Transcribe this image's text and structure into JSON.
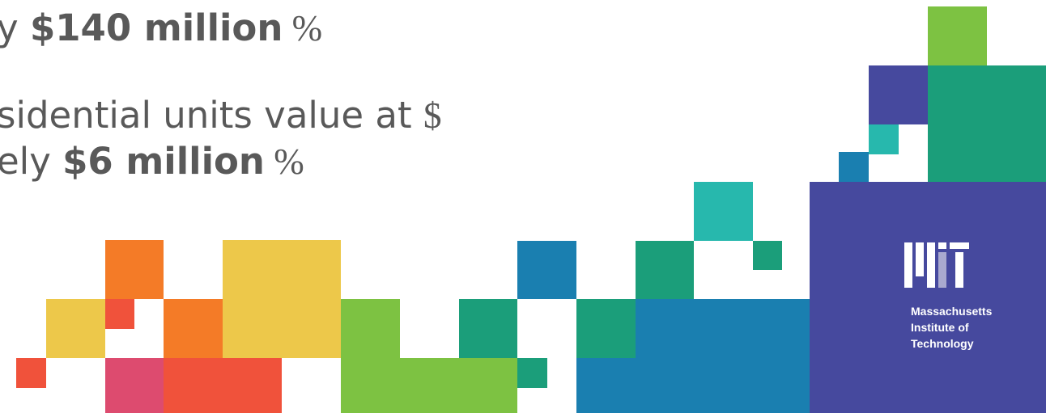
{
  "slide": {
    "lines": [
      {
        "parts": [
          {
            "text": "y ",
            "bold": false
          },
          {
            "text": "$140 million",
            "bold": true
          },
          {
            "text": " %",
            "bold": false,
            "symbol": true
          }
        ]
      },
      {
        "parts": [
          {
            "text": "sidential units value at ",
            "bold": false
          },
          {
            "text": "$",
            "bold": false,
            "symbol": true
          }
        ]
      },
      {
        "parts": [
          {
            "text": "ely ",
            "bold": false
          },
          {
            "text": "$6 million",
            "bold": true
          },
          {
            "text": " %",
            "bold": false,
            "symbol": true
          }
        ]
      }
    ],
    "logo": {
      "lines": [
        "Massachusetts",
        "Institute of",
        "Technology"
      ]
    }
  }
}
